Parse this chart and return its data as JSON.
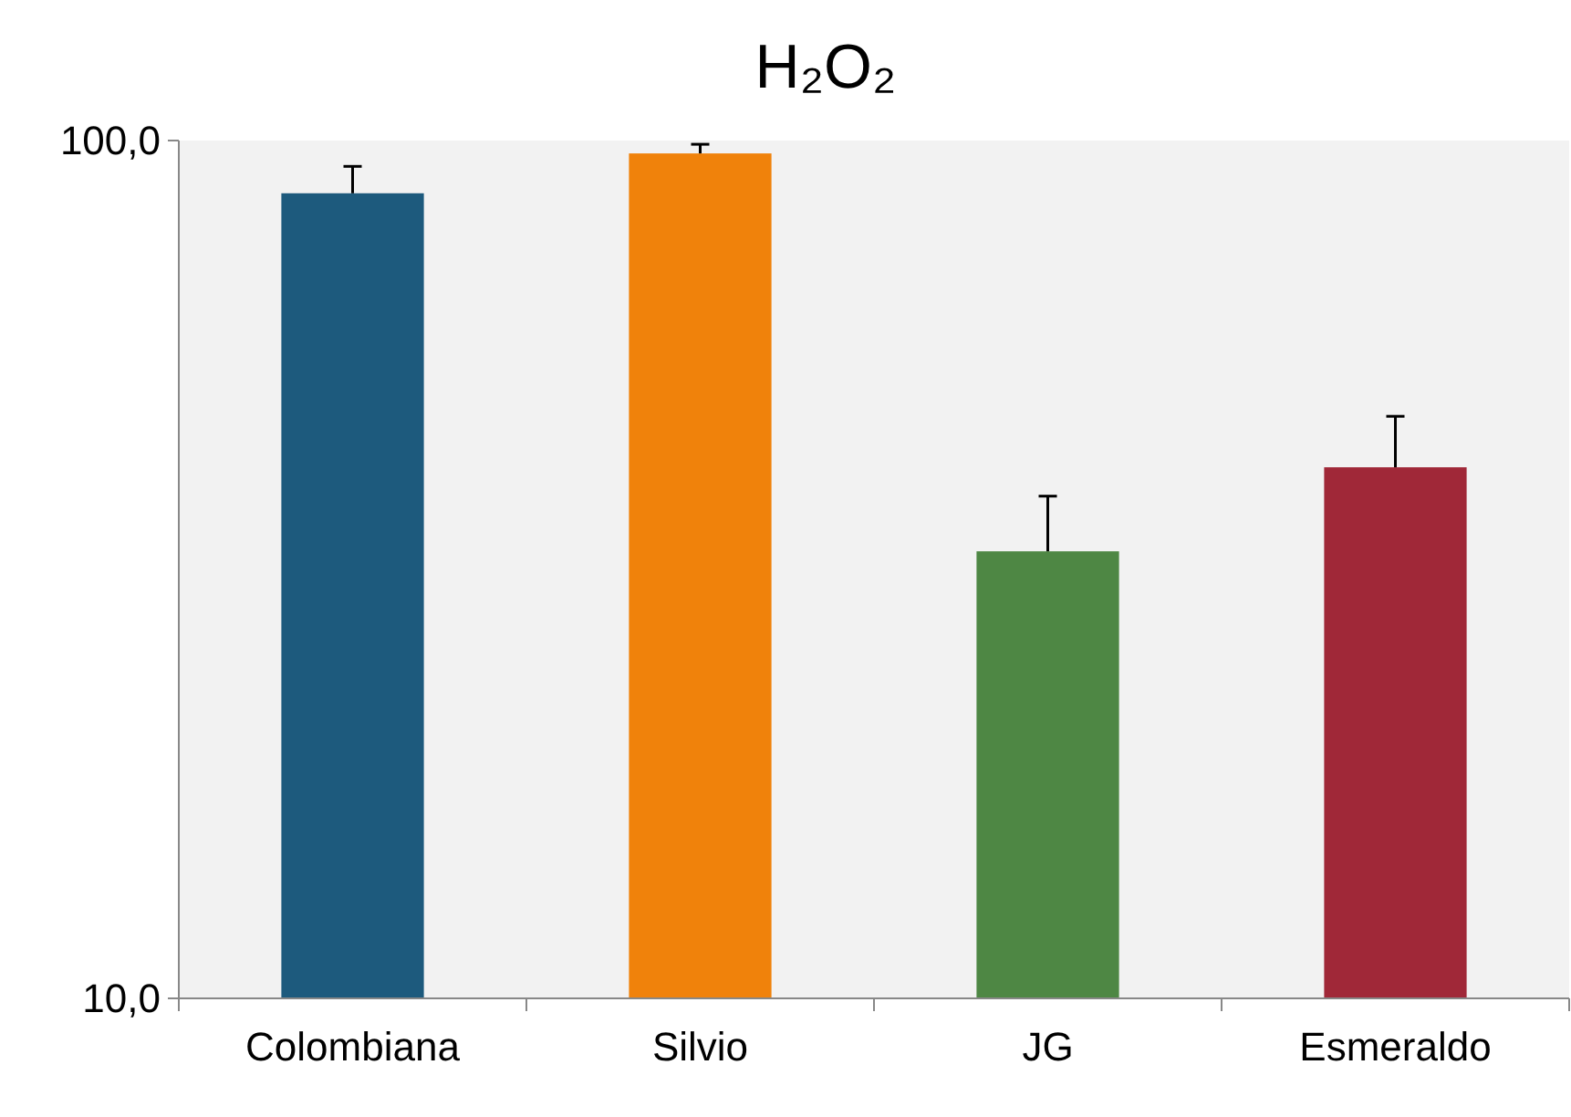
{
  "chart_data": {
    "type": "bar",
    "title": "H₂O₂",
    "categories": [
      "Colombiana",
      "Silvio",
      "JG",
      "Esmeraldo"
    ],
    "values": [
      86.8,
      96.6,
      33.2,
      41.6
    ],
    "colors": [
      "#1d5a7d",
      "#f0820b",
      "#4e8744",
      "#a02838"
    ],
    "errors": [
      [
        86.8,
        93.3
      ],
      [
        96.6,
        99.0
      ],
      [
        33.2,
        38.5
      ],
      [
        41.6,
        47.7
      ]
    ],
    "log": true,
    "ylim": [
      10,
      100
    ],
    "yticks": [
      {
        "value": 10,
        "label": "10,0"
      },
      {
        "value": 100,
        "label": "100,0"
      }
    ],
    "grid": false
  }
}
